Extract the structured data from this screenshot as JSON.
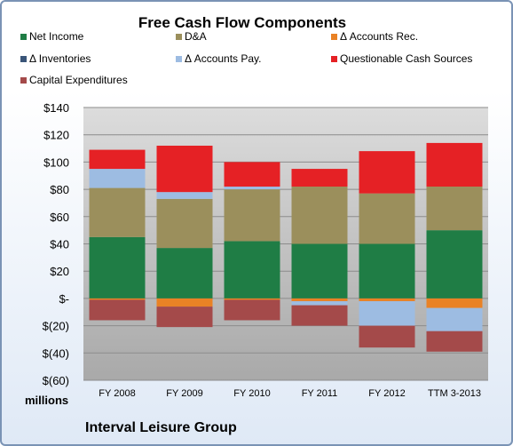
{
  "chart_data": {
    "type": "bar",
    "stacked": true,
    "title": "Free Cash Flow Components",
    "ylabel": "millions",
    "footer": "Interval Leisure Group",
    "ylim": [
      -60,
      140
    ],
    "yticks": [
      140,
      120,
      100,
      80,
      60,
      40,
      20,
      0,
      -20,
      -40,
      -60
    ],
    "ytick_labels": [
      "$140",
      "$120",
      "$100",
      "$80",
      "$60",
      "$40",
      "$20",
      "$-",
      "$(20)",
      "$(40)",
      "$(60)"
    ],
    "legend_position": "top",
    "categories": [
      "FY 2008",
      "FY 2009",
      "FY 2010",
      "FY 2011",
      "FY 2012",
      "TTM 3-2013"
    ],
    "series": [
      {
        "name": "Net Income",
        "color": "#1f7d45",
        "values": [
          45,
          37,
          42,
          40,
          40,
          50
        ]
      },
      {
        "name": "D&A",
        "color": "#9b8f5c",
        "values": [
          36,
          36,
          38,
          42,
          37,
          32
        ]
      },
      {
        "name": "Δ Accounts Rec.",
        "color": "#e98225",
        "values": [
          -1,
          -6,
          -1,
          -2,
          -2,
          -7
        ]
      },
      {
        "name": "Δ Inventories",
        "color": "#3a5578",
        "values": [
          0,
          0,
          0,
          0,
          0,
          0
        ]
      },
      {
        "name": "Δ Accounts Pay.",
        "color": "#9dbce2",
        "values": [
          14,
          5,
          2,
          -3,
          -18,
          -17
        ]
      },
      {
        "name": "Questionable Cash Sources",
        "color": "#e52125",
        "values": [
          14,
          34,
          18,
          13,
          31,
          32
        ]
      },
      {
        "name": "Capital Expenditures",
        "color": "#a44a4a",
        "values": [
          -15,
          -15,
          -15,
          -15,
          -16,
          -15
        ]
      }
    ]
  }
}
